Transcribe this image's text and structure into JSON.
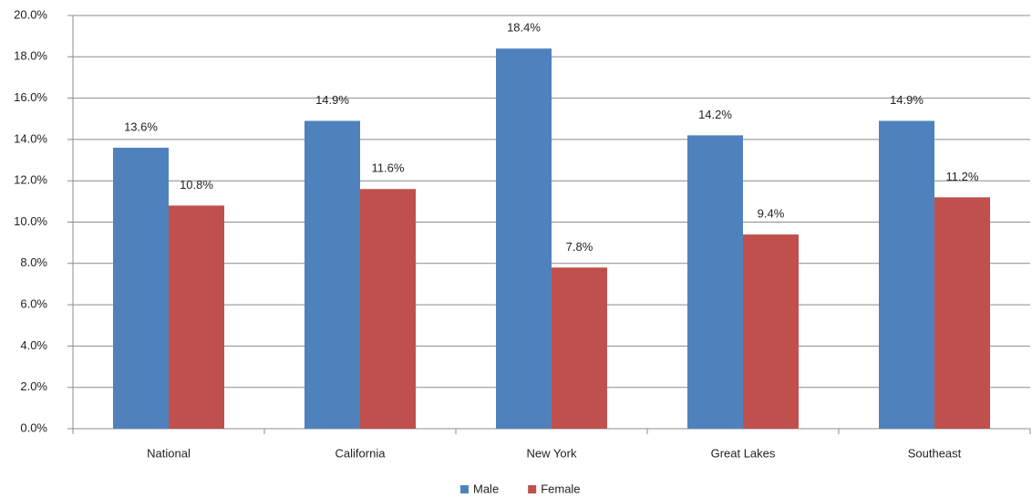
{
  "chart_data": {
    "type": "bar",
    "categories": [
      "National",
      "California",
      "New York",
      "Great Lakes",
      "Southeast"
    ],
    "series": [
      {
        "name": "Male",
        "color": "#4f81bd",
        "values": [
          13.6,
          14.9,
          18.4,
          14.2,
          14.9
        ],
        "value_labels": [
          "13.6%",
          "14.9%",
          "18.4%",
          "14.2%",
          "14.9%"
        ]
      },
      {
        "name": "Female",
        "color": "#c0504d",
        "values": [
          10.8,
          11.6,
          7.8,
          9.4,
          11.2
        ],
        "value_labels": [
          "10.8%",
          "11.6%",
          "7.8%",
          "9.4%",
          "11.2%"
        ]
      }
    ],
    "ylim": [
      0,
      20
    ],
    "yticks": [
      {
        "value": 0,
        "label": "0.0%"
      },
      {
        "value": 2,
        "label": "2.0%"
      },
      {
        "value": 4,
        "label": "4.0%"
      },
      {
        "value": 6,
        "label": "6.0%"
      },
      {
        "value": 8,
        "label": "8.0%"
      },
      {
        "value": 10,
        "label": "10.0%"
      },
      {
        "value": 12,
        "label": "12.0%"
      },
      {
        "value": 14,
        "label": "14.0%"
      },
      {
        "value": 16,
        "label": "16.0%"
      },
      {
        "value": 18,
        "label": "18.0%"
      },
      {
        "value": 20,
        "label": "20.0%"
      }
    ],
    "grid": true,
    "legend": "bottom"
  }
}
